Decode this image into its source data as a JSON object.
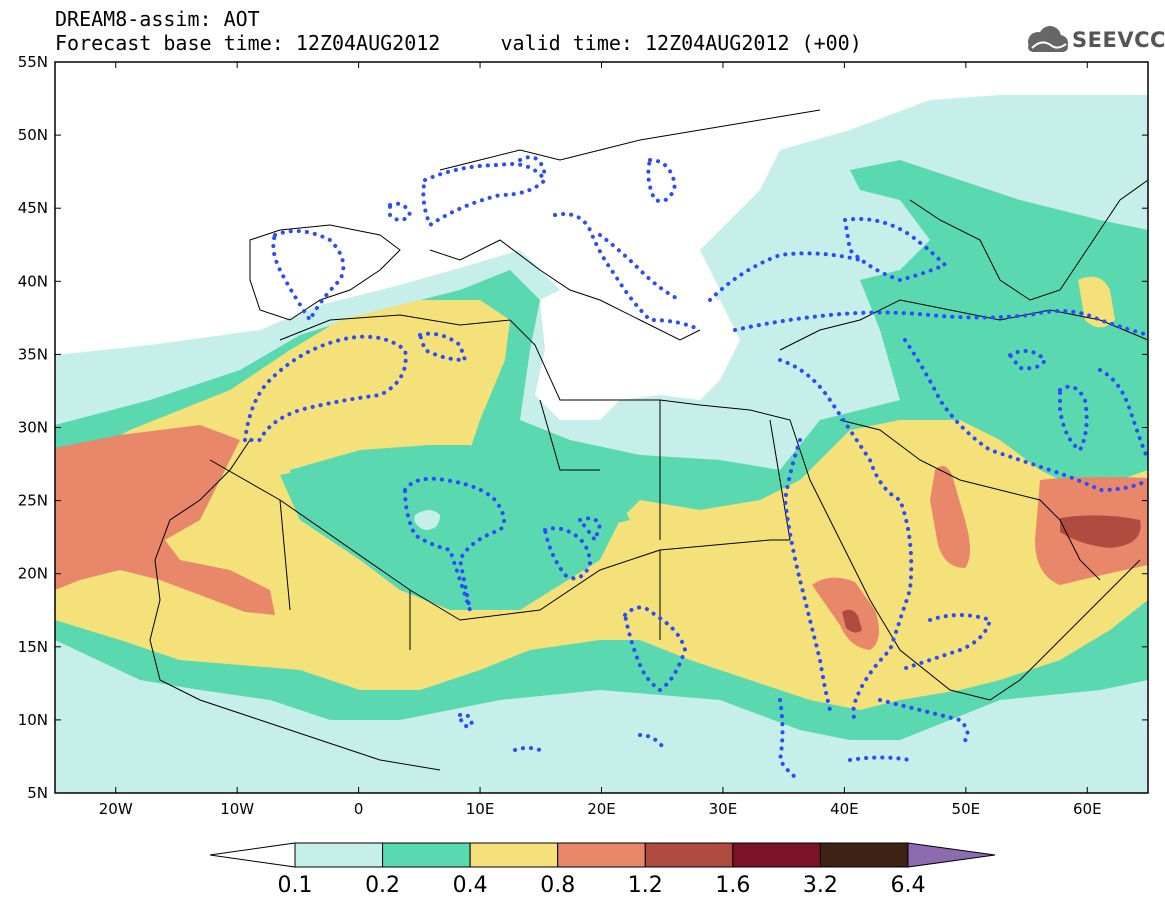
{
  "header": {
    "title_line1": "DREAM8-assim: AOT",
    "title_line2": "Forecast base time: 12Z04AUG2012     valid time: 12Z04AUG2012 (+00)",
    "logo_text": "SEEVCCC",
    "logo_icon": "cloud-icon"
  },
  "map": {
    "lat_labels": [
      "55N",
      "50N",
      "45N",
      "40N",
      "35N",
      "30N",
      "25N",
      "20N",
      "15N",
      "10N",
      "5N"
    ],
    "lon_labels": [
      "20W",
      "10W",
      "0",
      "10E",
      "20E",
      "30E",
      "40E",
      "50E",
      "60E"
    ],
    "lon_range": [
      -25,
      65
    ],
    "lat_range": [
      5,
      55
    ]
  },
  "colorbar": {
    "labels": [
      "0.1",
      "0.2",
      "0.4",
      "0.8",
      "1.2",
      "1.6",
      "3.2",
      "6.4"
    ],
    "colors": [
      "#ffffff",
      "#c6efe9",
      "#5ad8b0",
      "#f5e17a",
      "#e8876a",
      "#b04b3f",
      "#7b1228",
      "#3e2314",
      "#8d6bb0"
    ]
  },
  "colors": {
    "lightest": "#c6efe9",
    "green": "#5ad8b0",
    "yellow": "#f5e17a",
    "orange": "#e8876a",
    "darkred": "#b04b3f",
    "dotted_contour": "#2b4bff"
  }
}
